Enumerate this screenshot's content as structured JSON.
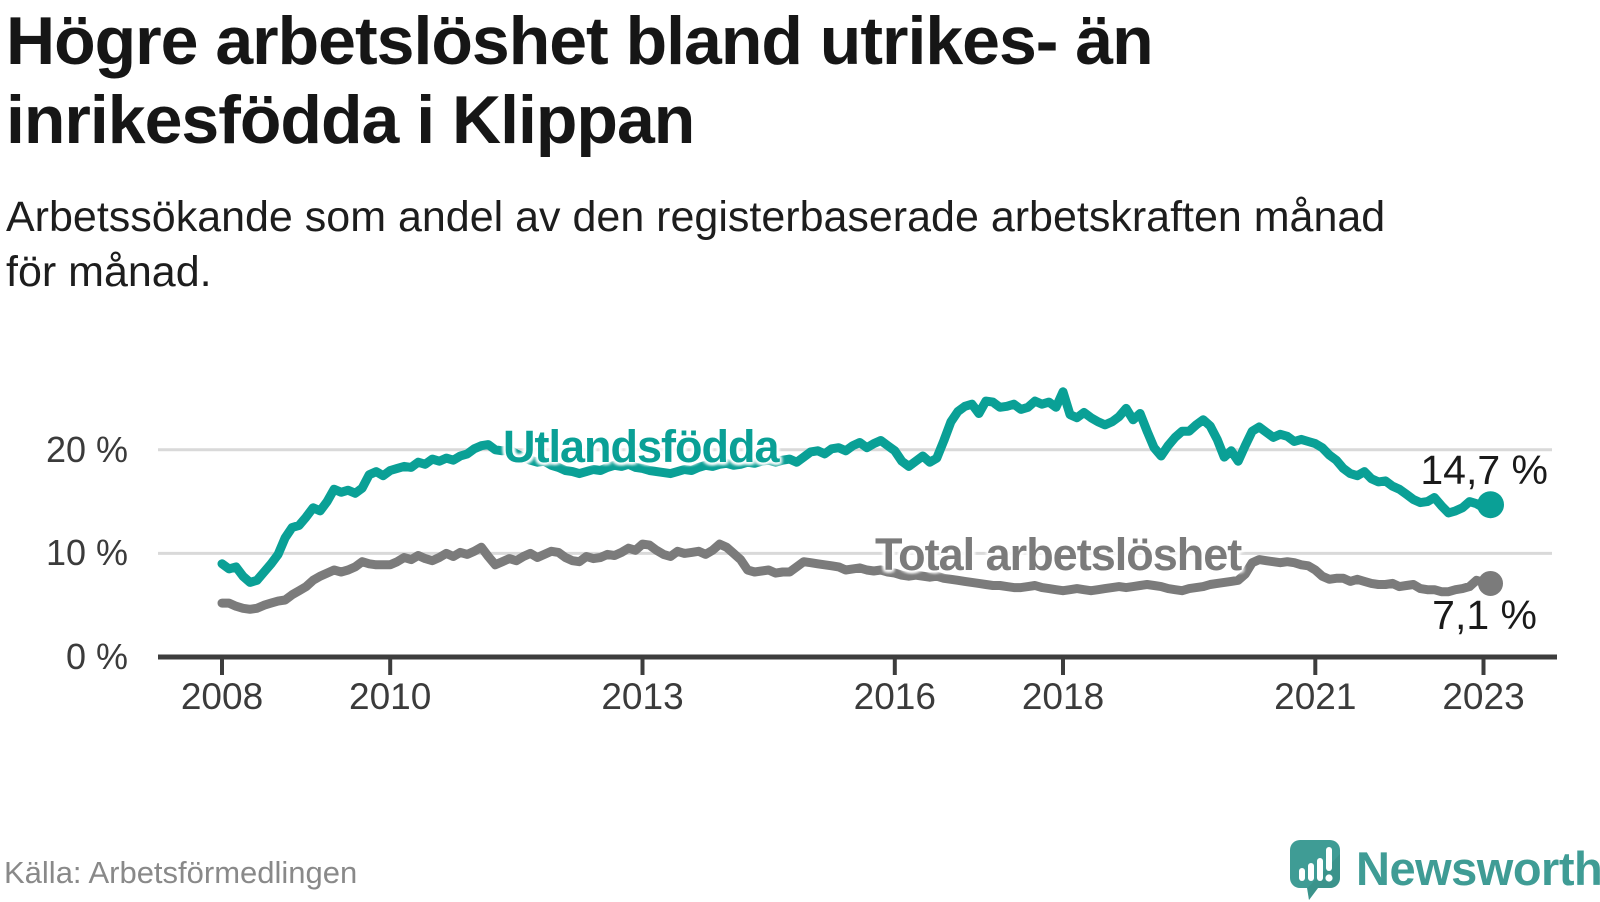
{
  "header": {
    "title_lines": [
      "Högre arbetslöshet bland utrikes- än",
      "inrikesfödda i Klippan"
    ],
    "subtitle_lines": [
      "Arbetssökande som andel av den registerbaserade arbetskraften månad",
      "för månad."
    ]
  },
  "chart_data": {
    "type": "line",
    "title": "Högre arbetslöshet bland utrikes- än inrikesfödda i Klippan",
    "subtitle": "Arbetssökande som andel av den registerbaserade arbetskraften månad för månad.",
    "x_start": "2008-01",
    "x_end": "2023-02",
    "frequency": "monthly",
    "ylim": [
      0,
      27
    ],
    "grid": "horizontal",
    "legend_position": "inline-labels",
    "y_ticks": [
      {
        "label": "0 %",
        "value": 0
      },
      {
        "label": "10 %",
        "value": 10
      },
      {
        "label": "20 %",
        "value": 20
      }
    ],
    "x_ticks": [
      {
        "label": "2008",
        "year": 2008
      },
      {
        "label": "2010",
        "year": 2010
      },
      {
        "label": "2013",
        "year": 2013
      },
      {
        "label": "2016",
        "year": 2016
      },
      {
        "label": "2018",
        "year": 2018
      },
      {
        "label": "2021",
        "year": 2021
      },
      {
        "label": "2023",
        "year": 2023
      }
    ],
    "series": [
      {
        "name": "Utlandsfödda",
        "color": "#0aa096",
        "end_label": "14,7 %",
        "end_value": 14.7,
        "values": [
          9.0,
          8.5,
          8.7,
          7.8,
          7.2,
          7.4,
          8.2,
          9.0,
          9.9,
          11.5,
          12.5,
          12.7,
          13.5,
          14.4,
          14.1,
          15.0,
          16.2,
          15.9,
          16.1,
          15.8,
          16.3,
          17.6,
          17.9,
          17.5,
          18.0,
          18.2,
          18.4,
          18.3,
          18.8,
          18.6,
          19.1,
          18.9,
          19.2,
          19.0,
          19.4,
          19.6,
          20.1,
          20.4,
          20.5,
          20.0,
          19.9,
          20.0,
          19.6,
          19.3,
          19.0,
          18.8,
          18.9,
          18.5,
          18.3,
          18.0,
          17.9,
          17.7,
          17.9,
          18.1,
          18.0,
          18.3,
          18.5,
          18.4,
          18.6,
          18.3,
          18.2,
          18.0,
          17.9,
          17.8,
          17.7,
          17.9,
          18.1,
          18.0,
          18.3,
          18.5,
          18.4,
          18.6,
          18.7,
          18.5,
          18.6,
          18.8,
          18.7,
          18.9,
          19.0,
          18.8,
          19.0,
          19.1,
          18.8,
          19.3,
          19.8,
          19.9,
          19.6,
          20.1,
          20.2,
          19.9,
          20.4,
          20.7,
          20.2,
          20.6,
          20.9,
          20.4,
          19.9,
          18.9,
          18.4,
          18.9,
          19.4,
          18.8,
          19.2,
          20.9,
          22.7,
          23.7,
          24.2,
          24.4,
          23.5,
          24.7,
          24.6,
          24.1,
          24.2,
          24.4,
          23.9,
          24.1,
          24.7,
          24.4,
          24.6,
          24.1,
          25.6,
          23.4,
          23.1,
          23.6,
          23.1,
          22.7,
          22.4,
          22.7,
          23.2,
          24.0,
          22.9,
          23.5,
          21.8,
          20.2,
          19.4,
          20.4,
          21.2,
          21.8,
          21.8,
          22.4,
          22.9,
          22.3,
          21.0,
          19.3,
          19.9,
          18.9,
          20.4,
          21.8,
          22.2,
          21.7,
          21.2,
          21.5,
          21.3,
          20.8,
          21.0,
          20.8,
          20.6,
          20.2,
          19.5,
          19.0,
          18.2,
          17.7,
          17.5,
          17.9,
          17.2,
          16.9,
          17.0,
          16.5,
          16.2,
          15.7,
          15.2,
          14.9,
          15.0,
          15.4,
          14.6,
          13.9,
          14.1,
          14.4,
          15.0,
          14.8,
          14.4,
          14.7
        ]
      },
      {
        "name": "Total arbetslöshet",
        "color": "#7b7b7b",
        "end_label": "7,1 %",
        "end_value": 7.1,
        "values": [
          5.2,
          5.2,
          4.9,
          4.7,
          4.6,
          4.7,
          5.0,
          5.2,
          5.4,
          5.5,
          6.0,
          6.4,
          6.8,
          7.4,
          7.8,
          8.1,
          8.4,
          8.2,
          8.4,
          8.7,
          9.2,
          9.0,
          8.9,
          8.9,
          8.9,
          9.2,
          9.6,
          9.4,
          9.8,
          9.5,
          9.3,
          9.6,
          10.0,
          9.7,
          10.1,
          9.9,
          10.2,
          10.6,
          9.7,
          8.9,
          9.2,
          9.5,
          9.3,
          9.7,
          10.0,
          9.6,
          9.9,
          10.2,
          10.1,
          9.6,
          9.3,
          9.2,
          9.7,
          9.5,
          9.6,
          9.9,
          9.8,
          10.1,
          10.5,
          10.3,
          10.9,
          10.8,
          10.3,
          9.9,
          9.7,
          10.2,
          10.0,
          10.1,
          10.2,
          9.9,
          10.3,
          10.9,
          10.6,
          10.0,
          9.4,
          8.4,
          8.2,
          8.3,
          8.4,
          8.1,
          8.2,
          8.2,
          8.7,
          9.2,
          9.1,
          9.0,
          8.9,
          8.8,
          8.7,
          8.4,
          8.5,
          8.6,
          8.4,
          8.3,
          8.4,
          8.2,
          8.1,
          7.9,
          7.8,
          7.9,
          7.8,
          7.7,
          7.8,
          7.6,
          7.5,
          7.4,
          7.3,
          7.2,
          7.1,
          7.0,
          6.9,
          6.9,
          6.8,
          6.7,
          6.7,
          6.8,
          6.9,
          6.7,
          6.6,
          6.5,
          6.4,
          6.5,
          6.6,
          6.5,
          6.4,
          6.5,
          6.6,
          6.7,
          6.8,
          6.7,
          6.8,
          6.9,
          7.0,
          6.9,
          6.8,
          6.6,
          6.5,
          6.4,
          6.6,
          6.7,
          6.8,
          7.0,
          7.1,
          7.2,
          7.3,
          7.4,
          8.0,
          9.1,
          9.4,
          9.3,
          9.2,
          9.1,
          9.2,
          9.1,
          8.9,
          8.8,
          8.4,
          7.8,
          7.5,
          7.6,
          7.6,
          7.3,
          7.5,
          7.3,
          7.1,
          7.0,
          7.0,
          7.1,
          6.8,
          6.9,
          7.0,
          6.6,
          6.5,
          6.5,
          6.3,
          6.3,
          6.5,
          6.6,
          6.8,
          7.4,
          7.2,
          7.1
        ]
      }
    ]
  },
  "footer": {
    "source": "Källa: Arbetsförmedlingen",
    "brand": "Newsworthy"
  },
  "colors": {
    "accent_teal": "#0aa096",
    "logo_teal": "#3f9c95",
    "series_gray": "#7b7b7b",
    "gridline": "#d9d9d9",
    "axis": "#3d3d3d",
    "text_dark": "#161616",
    "tick_text": "#3b3b3b",
    "source_text": "#898989"
  }
}
